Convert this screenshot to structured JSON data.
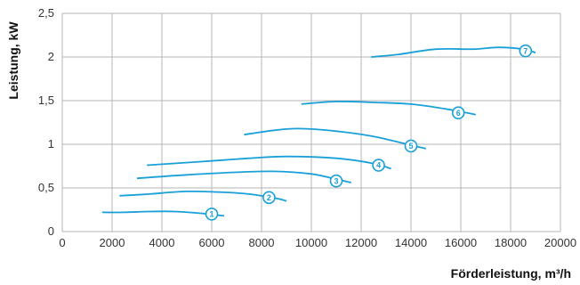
{
  "chart_data": {
    "type": "line",
    "xlabel": "Förderleistung, m³/h",
    "ylabel": "Leistung, kW",
    "xlim": [
      0,
      20000
    ],
    "ylim": [
      0,
      2.5
    ],
    "x_ticks": [
      "0",
      "2000",
      "4000",
      "6000",
      "8000",
      "10000",
      "12000",
      "14000",
      "16000",
      "18000",
      "20000"
    ],
    "y_ticks": [
      "0",
      "0,5",
      "1",
      "1,5",
      "2",
      "2,5"
    ],
    "grid": true,
    "legend": "none",
    "color": "#1aa0d8",
    "series": [
      {
        "label": "1",
        "badge_x": 6000,
        "badge_y": 0.2,
        "x": [
          1600,
          2500,
          3500,
          4500,
          5500,
          6500
        ],
        "y": [
          0.22,
          0.22,
          0.23,
          0.23,
          0.21,
          0.18
        ]
      },
      {
        "label": "2",
        "badge_x": 8300,
        "badge_y": 0.39,
        "x": [
          2300,
          3500,
          5000,
          6500,
          7500,
          8600,
          9000
        ],
        "y": [
          0.41,
          0.43,
          0.46,
          0.45,
          0.43,
          0.38,
          0.35
        ]
      },
      {
        "label": "3",
        "badge_x": 11000,
        "badge_y": 0.58,
        "x": [
          3000,
          5000,
          7000,
          8500,
          10000,
          11000,
          11600
        ],
        "y": [
          0.61,
          0.65,
          0.68,
          0.69,
          0.66,
          0.6,
          0.56
        ]
      },
      {
        "label": "4",
        "badge_x": 12700,
        "badge_y": 0.76,
        "x": [
          3400,
          5500,
          7500,
          9000,
          11000,
          12500,
          13200
        ],
        "y": [
          0.76,
          0.8,
          0.84,
          0.86,
          0.84,
          0.78,
          0.72
        ]
      },
      {
        "label": "5",
        "badge_x": 14000,
        "badge_y": 0.98,
        "x": [
          7300,
          8500,
          9500,
          11000,
          12500,
          14000,
          14600
        ],
        "y": [
          1.11,
          1.16,
          1.18,
          1.15,
          1.09,
          0.99,
          0.95
        ]
      },
      {
        "label": "6",
        "badge_x": 15900,
        "badge_y": 1.36,
        "x": [
          9600,
          11000,
          12500,
          14000,
          15500,
          16600
        ],
        "y": [
          1.46,
          1.49,
          1.48,
          1.46,
          1.4,
          1.34
        ]
      },
      {
        "label": "7",
        "badge_x": 18600,
        "badge_y": 2.07,
        "x": [
          12400,
          13500,
          15000,
          16500,
          17500,
          18500,
          19000
        ],
        "y": [
          2.0,
          2.03,
          2.09,
          2.09,
          2.11,
          2.09,
          2.05
        ]
      }
    ]
  }
}
